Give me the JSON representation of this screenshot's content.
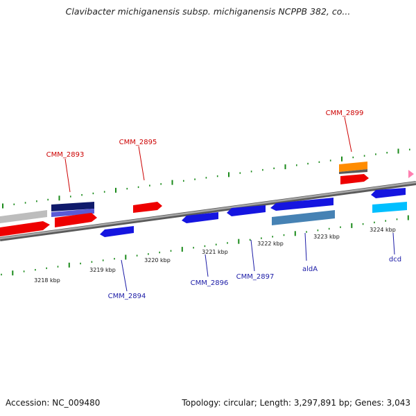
{
  "title": "Clavibacter michiganensis subsp. michiganensis NCPPB 382, co...",
  "footer": {
    "accession": "Accession: NC_009480",
    "summary": "Topology: circular; Length: 3,297,891 bp; Genes: 3,043"
  },
  "colors": {
    "forward_gene": "#ff0000",
    "reverse_gene": "#0000ee",
    "forward_label": "#cc0000",
    "reverse_label": "#1a1aa6",
    "rna_gene": "#ff8c00",
    "cyan_feature": "#00bfff",
    "steel_feature": "#4682b4",
    "grey_feature": "#bdbdbd",
    "tick": "#1a8a1a",
    "backbone": "#888888"
  },
  "scale": {
    "unit": "kbp",
    "ticks": [
      {
        "label": "3218 kbp"
      },
      {
        "label": "3219 kbp"
      },
      {
        "label": "3220 kbp"
      },
      {
        "label": "3221 kbp"
      },
      {
        "label": "3222 kbp"
      },
      {
        "label": "3223 kbp"
      },
      {
        "label": "3224 kbp"
      }
    ]
  },
  "gene_labels": [
    {
      "text": "CMM_2893",
      "strand": "forward"
    },
    {
      "text": "CMM_2895",
      "strand": "forward"
    },
    {
      "text": "CMM_2899",
      "strand": "forward"
    },
    {
      "text": "CMM_2894",
      "strand": "reverse"
    },
    {
      "text": "CMM_2896",
      "strand": "reverse"
    },
    {
      "text": "CMM_2897",
      "strand": "reverse"
    },
    {
      "text": "aldA",
      "strand": "reverse"
    },
    {
      "text": "dcd",
      "strand": "reverse"
    }
  ]
}
